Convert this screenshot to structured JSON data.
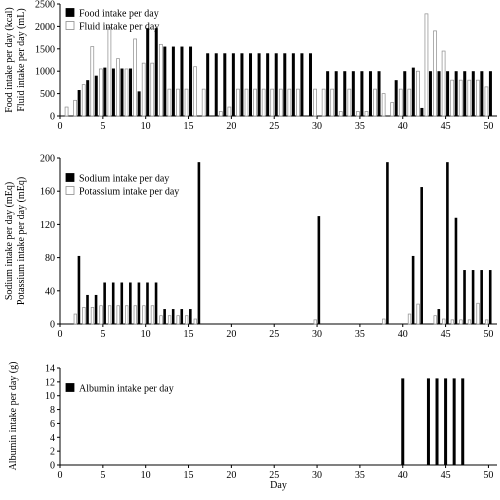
{
  "colors": {
    "black_series": "#000000",
    "white_series": "#ffffff",
    "outline": "#8c8c8c",
    "axis": "#000000"
  },
  "xaxis": {
    "label": "Day",
    "ticks": [
      "0",
      "5",
      "10",
      "15",
      "20",
      "25",
      "30",
      "35",
      "40",
      "45",
      "50"
    ],
    "lim": [
      0,
      51
    ]
  },
  "chart_data": [
    {
      "type": "bar",
      "title": "",
      "ylabel_lines": [
        "Food intake per day (kcal)",
        "Fluid intake per day (mL)"
      ],
      "ylim": [
        0,
        2500
      ],
      "yticks": [
        "0",
        "500",
        "1000",
        "1500",
        "2000",
        "2500"
      ],
      "grid": false,
      "legend_placement": "top-left",
      "x": [
        1,
        2,
        3,
        4,
        5,
        6,
        7,
        8,
        9,
        10,
        11,
        12,
        13,
        14,
        15,
        16,
        17,
        18,
        19,
        20,
        21,
        22,
        23,
        24,
        25,
        26,
        27,
        28,
        29,
        30,
        31,
        32,
        33,
        34,
        35,
        36,
        37,
        38,
        39,
        40,
        41,
        42,
        43,
        44,
        45,
        46,
        47,
        48,
        49,
        50
      ],
      "series": [
        {
          "name": "Food intake per day",
          "fill": "black",
          "values": [
            0,
            580,
            800,
            900,
            1080,
            1060,
            1060,
            1060,
            550,
            1960,
            1960,
            1550,
            1550,
            1550,
            1550,
            0,
            1400,
            1400,
            1400,
            1400,
            1400,
            1400,
            1400,
            1400,
            1400,
            1400,
            1400,
            1400,
            1400,
            0,
            1000,
            1000,
            1000,
            1000,
            1000,
            1000,
            1000,
            0,
            800,
            1000,
            1080,
            180,
            1000,
            1000,
            1000,
            1000,
            1000,
            1000,
            1000,
            1000
          ]
        },
        {
          "name": "Fluid intake per day",
          "fill": "white",
          "values": [
            200,
            350,
            700,
            1550,
            1050,
            1980,
            1280,
            1050,
            1720,
            1180,
            1180,
            1600,
            600,
            600,
            600,
            1100,
            600,
            0,
            100,
            200,
            600,
            600,
            600,
            600,
            600,
            600,
            600,
            600,
            0,
            600,
            600,
            600,
            100,
            600,
            100,
            100,
            600,
            500,
            300,
            600,
            600,
            1000,
            2280,
            1900,
            1450,
            800,
            800,
            800,
            800,
            650
          ]
        }
      ]
    },
    {
      "type": "bar",
      "title": "",
      "ylabel_lines": [
        "Sodium intake per day (mEq)",
        "Potassium intake per day (mEq)"
      ],
      "ylim": [
        0,
        200
      ],
      "yticks": [
        "0",
        "40",
        "80",
        "120",
        "160",
        "200"
      ],
      "grid": false,
      "legend_placement": "top-left",
      "x": [
        1,
        2,
        3,
        4,
        5,
        6,
        7,
        8,
        9,
        10,
        11,
        12,
        13,
        14,
        15,
        16,
        17,
        18,
        19,
        20,
        21,
        22,
        23,
        24,
        25,
        26,
        27,
        28,
        29,
        30,
        31,
        32,
        33,
        34,
        35,
        36,
        37,
        38,
        39,
        40,
        41,
        42,
        43,
        44,
        45,
        46,
        47,
        48,
        49,
        50
      ],
      "series": [
        {
          "name": "Sodium intake per day",
          "fill": "black",
          "values": [
            0,
            82,
            35,
            35,
            50,
            50,
            50,
            50,
            50,
            50,
            50,
            18,
            18,
            18,
            18,
            195,
            0,
            0,
            0,
            0,
            0,
            0,
            0,
            0,
            0,
            0,
            0,
            0,
            0,
            130,
            0,
            0,
            0,
            0,
            0,
            0,
            0,
            195,
            0,
            0,
            82,
            165,
            0,
            18,
            195,
            128,
            65,
            65,
            65,
            65
          ]
        },
        {
          "name": "Potassium intake per day",
          "fill": "white",
          "values": [
            0,
            12,
            20,
            20,
            22,
            22,
            22,
            22,
            22,
            22,
            22,
            10,
            10,
            10,
            10,
            6,
            0,
            0,
            0,
            0,
            0,
            0,
            0,
            0,
            0,
            0,
            0,
            0,
            0,
            5,
            0,
            0,
            0,
            0,
            0,
            0,
            0,
            6,
            0,
            0,
            12,
            24,
            0,
            10,
            6,
            5,
            5,
            5,
            25,
            5
          ]
        }
      ]
    },
    {
      "type": "bar",
      "title": "",
      "ylabel_lines": [
        "Albumin intake per day (g)"
      ],
      "ylim": [
        0,
        14
      ],
      "yticks": [
        "0",
        "2",
        "4",
        "6",
        "8",
        "10",
        "12",
        "14"
      ],
      "grid": false,
      "legend_placement": "top-left",
      "x": [
        40,
        43,
        44,
        45,
        46,
        47
      ],
      "series": [
        {
          "name": "Albumin intake per day",
          "fill": "black",
          "values": [
            12.5,
            12.5,
            12.5,
            12.5,
            12.5,
            12.5
          ]
        }
      ]
    }
  ]
}
